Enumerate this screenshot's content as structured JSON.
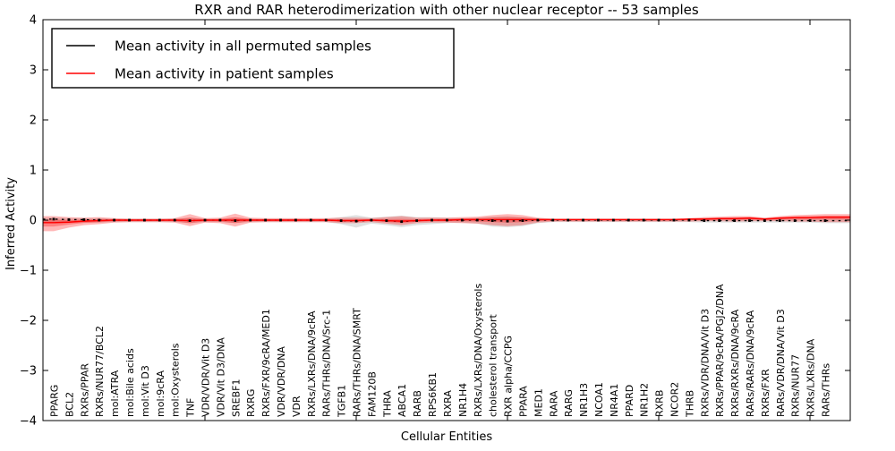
{
  "figure": {
    "background": "#ffffff"
  },
  "chart_data": {
    "type": "line",
    "title": "RXR and RAR heterodimerization with other nuclear receptor -- 53 samples",
    "xlabel": "Cellular Entities",
    "ylabel": "Inferred Activity",
    "ylim": [
      -4,
      4
    ],
    "ytick_labels": [
      "4",
      "3",
      "2",
      "1",
      "0",
      "−1",
      "−2",
      "−3",
      "−4"
    ],
    "ytick_values": [
      4,
      3,
      2,
      1,
      0,
      -1,
      -2,
      -3,
      -4
    ],
    "grid": false,
    "legend_position": "upper left",
    "legend": [
      {
        "label": "Mean activity in all permuted samples",
        "color": "#000000"
      },
      {
        "label": "Mean activity in patient samples",
        "color": "#ff0000"
      }
    ],
    "categories": [
      "PPARG",
      "BCL2",
      "RXRs/PPAR",
      "RXRs/NUR77/BCL2",
      "mol:ATRA",
      "mol:Bile acids",
      "mol:Vit D3",
      "mol:9cRA",
      "mol:Oxysterols",
      "TNF",
      "VDR/VDR/Vit D3",
      "VDR/Vit D3/DNA",
      "SREBF1",
      "RXRG",
      "RXRs/FXR/9cRA/MED1",
      "VDR/VDR/DNA",
      "VDR",
      "RXRs/LXRs/DNA/9cRA",
      "RARs/THRs/DNA/Src-1",
      "TGFB1",
      "RARs/THRs/DNA/SMRT",
      "FAM120B",
      "THRA",
      "ABCA1",
      "RARB",
      "RPS6KB1",
      "RXRA",
      "NR1H4",
      "RXRs/LXRs/DNA/Oxysterols",
      "cholesterol transport",
      "RXR alpha/CCPG",
      "PPARA",
      "MED1",
      "RARA",
      "RARG",
      "NR1H3",
      "NCOA1",
      "NR4A1",
      "PPARD",
      "NR1H2",
      "RXRB",
      "NCOR2",
      "THRB",
      "RXRs/VDR/DNA/Vit D3",
      "RXRs/PPAR/9cRA/PGJ2/DNA",
      "RXRs/RXRs/DNA/9cRA",
      "RARs/RARs/DNA/9cRA",
      "RXRs/FXR",
      "RARs/VDR/DNA/Vit D3",
      "RXRs/NUR77",
      "RXRs/LXRs/DNA",
      "RARs/THRs"
    ],
    "series": [
      {
        "name": "Mean activity in all permuted samples",
        "color": "#000000",
        "style": "dashed-with-square-markers",
        "values": [
          0.02,
          0.01,
          0.01,
          0,
          0,
          0,
          0,
          0,
          0,
          -0.01,
          0,
          0,
          -0.01,
          0,
          0,
          0,
          0,
          0,
          0,
          -0.01,
          -0.02,
          0,
          -0.01,
          -0.03,
          -0.01,
          0,
          0,
          0,
          0,
          -0.01,
          -0.02,
          -0.01,
          0,
          0,
          0,
          0,
          0,
          0,
          0,
          0,
          0,
          0,
          0,
          -0.01,
          -0.01,
          -0.01,
          -0.01,
          -0.01,
          -0.01,
          -0.01,
          -0.01,
          -0.01
        ]
      },
      {
        "name": "Mean activity in patient samples",
        "color": "#ff0000",
        "style": "solid",
        "values": [
          -0.05,
          -0.04,
          -0.02,
          -0.01,
          0,
          0,
          0,
          0,
          0,
          -0.01,
          0,
          0,
          0,
          0,
          0,
          0,
          0,
          0,
          0,
          -0.01,
          -0.01,
          0,
          -0.01,
          -0.02,
          -0.01,
          0,
          0,
          0.01,
          0.01,
          0.01,
          0.01,
          0.01,
          0.01,
          0.01,
          0.01,
          0.01,
          0.01,
          0.01,
          0.01,
          0.01,
          0.01,
          0.01,
          0.02,
          0.02,
          0.03,
          0.03,
          0.04,
          0.02,
          0.04,
          0.05,
          0.05,
          0.06
        ]
      }
    ],
    "bands": [
      {
        "name": "permuted-samples-range",
        "color": "#999999",
        "opacity": 0.3,
        "lower": [
          -0.06,
          -0.05,
          -0.05,
          -0.05,
          -0.04,
          -0.04,
          -0.04,
          -0.04,
          -0.04,
          -0.06,
          -0.04,
          -0.04,
          -0.06,
          -0.04,
          -0.04,
          -0.04,
          -0.04,
          -0.04,
          -0.04,
          -0.08,
          -0.15,
          -0.07,
          -0.1,
          -0.14,
          -0.1,
          -0.08,
          -0.06,
          -0.05,
          -0.07,
          -0.13,
          -0.14,
          -0.12,
          -0.06,
          -0.04,
          -0.04,
          -0.04,
          -0.04,
          -0.04,
          -0.04,
          -0.04,
          -0.04,
          -0.04,
          -0.04,
          -0.05,
          -0.05,
          -0.05,
          -0.05,
          -0.05,
          -0.05,
          -0.05,
          -0.05,
          -0.06
        ],
        "upper": [
          0.05,
          0.04,
          0.04,
          0.04,
          0.03,
          0.03,
          0.03,
          0.03,
          0.03,
          0.05,
          0.03,
          0.03,
          0.05,
          0.03,
          0.03,
          0.03,
          0.03,
          0.03,
          0.03,
          0.06,
          0.1,
          0.05,
          0.07,
          0.09,
          0.06,
          0.06,
          0.05,
          0.04,
          0.05,
          0.07,
          0.08,
          0.06,
          0.04,
          0.03,
          0.03,
          0.03,
          0.03,
          0.03,
          0.03,
          0.03,
          0.03,
          0.03,
          0.03,
          0.04,
          0.04,
          0.04,
          0.04,
          0.04,
          0.04,
          0.04,
          0.04,
          0.05
        ]
      },
      {
        "name": "patient-samples-range",
        "color": "#ff0000",
        "opacity": 0.28,
        "lower": [
          -0.22,
          -0.15,
          -0.1,
          -0.08,
          -0.05,
          -0.04,
          -0.04,
          -0.04,
          -0.05,
          -0.12,
          -0.05,
          -0.06,
          -0.13,
          -0.05,
          -0.04,
          -0.04,
          -0.04,
          -0.04,
          -0.04,
          -0.06,
          -0.06,
          -0.04,
          -0.07,
          -0.1,
          -0.06,
          -0.05,
          -0.05,
          -0.06,
          -0.07,
          -0.1,
          -0.12,
          -0.1,
          -0.05,
          -0.03,
          -0.03,
          -0.03,
          -0.03,
          -0.03,
          -0.03,
          -0.03,
          -0.03,
          -0.03,
          -0.03,
          -0.02,
          -0.02,
          -0.03,
          -0.02,
          -0.02,
          -0.02,
          -0.03,
          -0.03,
          -0.04
        ],
        "upper": [
          0.08,
          0.06,
          0.05,
          0.06,
          0.04,
          0.03,
          0.03,
          0.03,
          0.04,
          0.12,
          0.04,
          0.05,
          0.13,
          0.05,
          0.04,
          0.04,
          0.04,
          0.04,
          0.04,
          0.05,
          0.05,
          0.04,
          0.06,
          0.08,
          0.05,
          0.05,
          0.05,
          0.06,
          0.07,
          0.1,
          0.12,
          0.1,
          0.05,
          0.03,
          0.03,
          0.03,
          0.03,
          0.03,
          0.03,
          0.03,
          0.03,
          0.03,
          0.04,
          0.06,
          0.07,
          0.08,
          0.08,
          0.05,
          0.08,
          0.1,
          0.11,
          0.12
        ]
      }
    ]
  }
}
